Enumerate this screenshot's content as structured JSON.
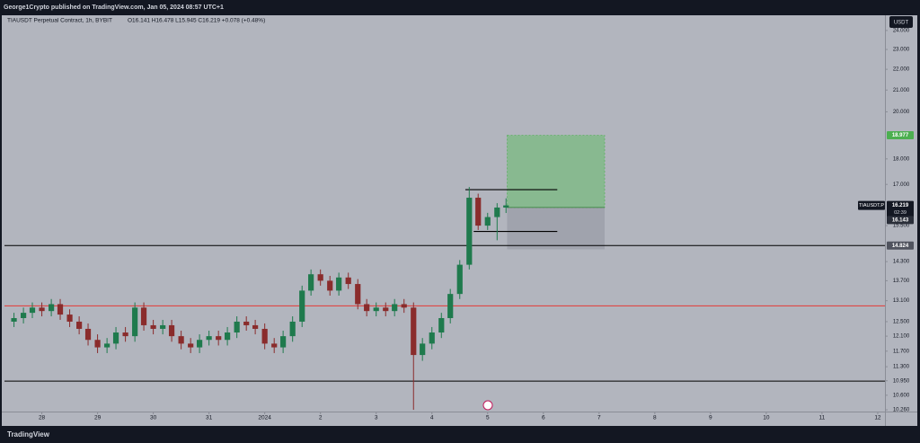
{
  "chart_data": {
    "type": "candlestick",
    "publisher": "George1Crypto published on TradingView.com, Jan 05, 2024 08:57 UTC+1",
    "title": "TIAUSDT Perpetual Contract, 1h, BYBIT",
    "ohlc_text": "O16.141 H16.478 L15.945 C16.219 +0.078 (+0.48%)",
    "currency": "USDT",
    "symbol_label": "TIAUSDT.P",
    "countdown": "02:39",
    "footer": "TradingView",
    "log_scale": true,
    "up_color": "#1f7a4d",
    "down_color": "#8a2c2c",
    "x": [
      -0.5,
      -0.33,
      -0.17,
      0,
      0.17,
      0.33,
      0.5,
      0.67,
      0.83,
      1,
      1.17,
      1.33,
      1.5,
      1.67,
      1.83,
      2,
      2.17,
      2.33,
      2.5,
      2.67,
      2.83,
      3,
      3.17,
      3.33,
      3.5,
      3.67,
      3.83,
      4,
      4.17,
      4.33,
      4.5,
      4.67,
      4.83,
      5,
      5.17,
      5.33,
      5.5,
      5.67,
      5.83,
      6,
      6.17,
      6.33,
      6.5,
      6.67,
      6.83,
      7,
      7.17,
      7.33,
      7.5,
      7.67,
      7.83,
      8,
      8.17,
      8.33
    ],
    "open": [
      12.5,
      12.6,
      12.75,
      12.9,
      12.8,
      13.0,
      12.7,
      12.5,
      12.3,
      12.0,
      11.8,
      11.9,
      12.2,
      12.1,
      12.9,
      12.4,
      12.3,
      12.4,
      12.1,
      11.9,
      11.8,
      12.0,
      12.1,
      12.0,
      12.2,
      12.5,
      12.4,
      12.3,
      11.9,
      11.8,
      12.1,
      12.5,
      13.4,
      13.9,
      13.7,
      13.4,
      13.8,
      13.6,
      13.0,
      12.8,
      12.9,
      12.8,
      13.0,
      12.9,
      11.6,
      11.9,
      12.2,
      12.6,
      13.3,
      14.2,
      16.5,
      15.5,
      15.8,
      16.141
    ],
    "high": [
      12.75,
      12.9,
      13.05,
      13.05,
      13.15,
      13.15,
      12.85,
      12.65,
      12.45,
      12.15,
      12.05,
      12.35,
      12.35,
      13.05,
      13.05,
      12.55,
      12.55,
      12.55,
      12.25,
      12.05,
      12.15,
      12.25,
      12.25,
      12.35,
      12.65,
      12.65,
      12.55,
      12.45,
      12.05,
      12.25,
      12.65,
      13.55,
      14.05,
      14.05,
      13.85,
      13.95,
      13.95,
      13.75,
      13.15,
      13.05,
      13.05,
      13.15,
      13.15,
      13.05,
      12.05,
      12.35,
      12.75,
      13.45,
      14.35,
      16.9,
      16.65,
      15.95,
      16.3,
      16.478
    ],
    "low": [
      12.35,
      12.45,
      12.6,
      12.65,
      12.65,
      12.55,
      12.35,
      12.15,
      11.85,
      11.65,
      11.65,
      11.75,
      11.95,
      11.95,
      12.25,
      12.15,
      12.15,
      11.95,
      11.75,
      11.65,
      11.65,
      11.85,
      11.85,
      11.85,
      12.05,
      12.25,
      12.15,
      11.75,
      11.65,
      11.65,
      11.95,
      12.35,
      13.25,
      13.55,
      13.25,
      13.25,
      13.45,
      12.85,
      12.65,
      12.65,
      12.65,
      12.65,
      12.75,
      10.26,
      11.45,
      11.75,
      12.05,
      12.45,
      13.15,
      14.05,
      15.35,
      15.35,
      15.0,
      15.945
    ],
    "close": [
      12.6,
      12.75,
      12.9,
      12.8,
      13.0,
      12.7,
      12.5,
      12.3,
      12.0,
      11.8,
      11.9,
      12.2,
      12.1,
      12.9,
      12.4,
      12.3,
      12.4,
      12.1,
      11.9,
      11.8,
      12.0,
      12.1,
      12.0,
      12.2,
      12.5,
      12.4,
      12.3,
      11.9,
      11.8,
      12.1,
      12.5,
      13.4,
      13.9,
      13.7,
      13.4,
      13.8,
      13.6,
      13.0,
      12.8,
      12.9,
      12.8,
      13.0,
      12.9,
      11.6,
      11.9,
      12.2,
      12.6,
      13.3,
      14.2,
      16.5,
      15.5,
      15.8,
      16.141,
      16.219
    ],
    "xlim": [
      -0.67,
      15.13
    ],
    "xticks": [
      {
        "value": 0,
        "label": "28"
      },
      {
        "value": 1,
        "label": "29"
      },
      {
        "value": 2,
        "label": "30"
      },
      {
        "value": 3,
        "label": "31"
      },
      {
        "value": 4,
        "label": "2024"
      },
      {
        "value": 5,
        "label": "2"
      },
      {
        "value": 6,
        "label": "3"
      },
      {
        "value": 7,
        "label": "4"
      },
      {
        "value": 8,
        "label": "5"
      },
      {
        "value": 9,
        "label": "6"
      },
      {
        "value": 10,
        "label": "7"
      },
      {
        "value": 11,
        "label": "8"
      },
      {
        "value": 12,
        "label": "9"
      },
      {
        "value": 13,
        "label": "10"
      },
      {
        "value": 14,
        "label": "11"
      },
      {
        "value": 15,
        "label": "12"
      }
    ],
    "ylim": [
      10.22,
      24.78
    ],
    "yticks": [
      {
        "value": 24,
        "label": "24.000"
      },
      {
        "value": 23,
        "label": "23.000"
      },
      {
        "value": 22,
        "label": "22.000"
      },
      {
        "value": 21,
        "label": "21.000"
      },
      {
        "value": 20,
        "label": "20.000"
      },
      {
        "value": 18,
        "label": "18.000"
      },
      {
        "value": 17,
        "label": "17.000"
      },
      {
        "value": 15.5,
        "label": "15.500"
      },
      {
        "value": 14.3,
        "label": "14.300"
      },
      {
        "value": 13.7,
        "label": "13.700"
      },
      {
        "value": 13.1,
        "label": "13.100"
      },
      {
        "value": 12.5,
        "label": "12.500"
      },
      {
        "value": 12.1,
        "label": "12.100"
      },
      {
        "value": 11.7,
        "label": "11.700"
      },
      {
        "value": 11.3,
        "label": "11.300"
      },
      {
        "value": 10.95,
        "label": "10.950"
      },
      {
        "value": 10.6,
        "label": "10.600"
      },
      {
        "value": 10.26,
        "label": "10.260"
      }
    ],
    "lines": [
      {
        "value": 14.824,
        "color": "#000000"
      },
      {
        "value": 12.95,
        "color": "#e53935"
      },
      {
        "value": 10.94,
        "color": "#000000"
      }
    ],
    "brackets": [
      {
        "value": 16.8,
        "x": [
          7.6,
          9.25
        ]
      },
      {
        "value": 15.3,
        "x": [
          7.75,
          9.25
        ]
      }
    ],
    "position": {
      "entry": 16.143,
      "target": 18.977,
      "stop": 14.7,
      "x": [
        8.35,
        10.1
      ]
    }
  }
}
